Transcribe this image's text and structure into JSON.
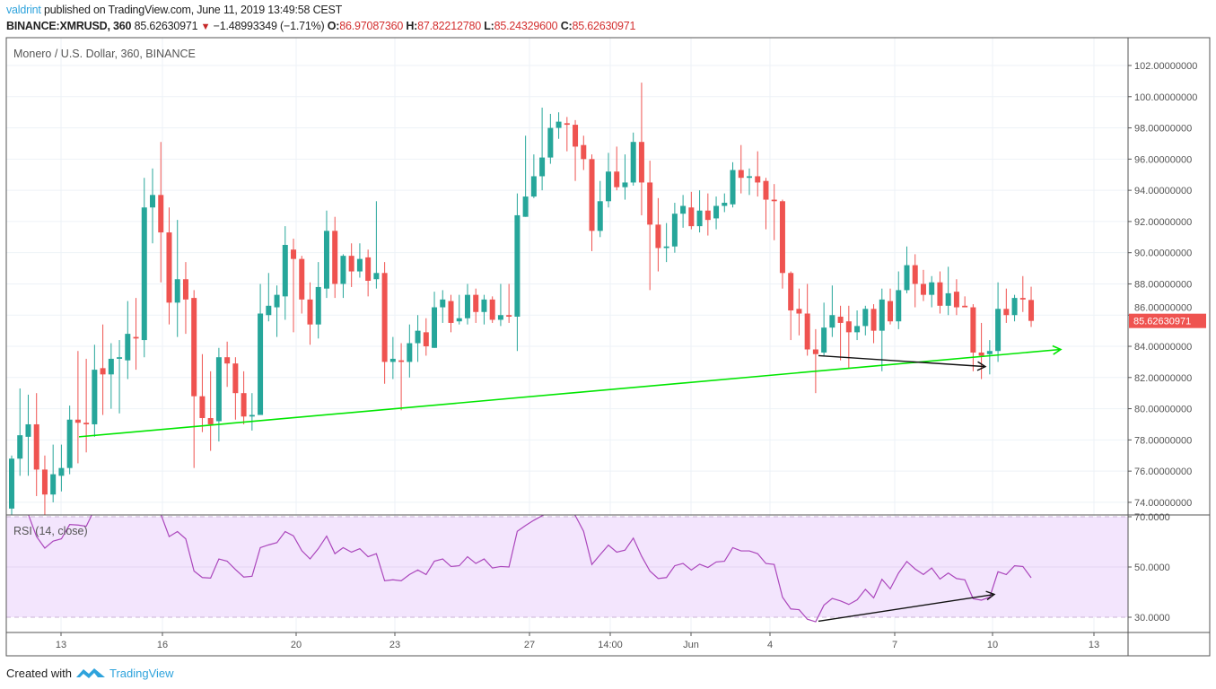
{
  "header": {
    "author": "valdrint",
    "published_text": "published on TradingView.com, June 11, 2019 13:49:58 CEST",
    "symbol": "BINANCE:XMRUSD, 360",
    "last_price": "85.62630971",
    "change": "−1.48993349 (−1.71%)",
    "change_direction": "down",
    "open_label": "O:",
    "open": "86.97087360",
    "high_label": "H:",
    "high": "87.82212780",
    "low_label": "L:",
    "low": "85.24329600",
    "close_label": "C:",
    "close": "85.62630971"
  },
  "legend": "Monero / U.S. Dollar, 360, BINANCE",
  "rsi_legend": "RSI (14, close)",
  "current_price_badge": "85.62630971",
  "footer": {
    "created_with": "Created with",
    "brand": "TradingView"
  },
  "colors": {
    "up": "#26a69a",
    "down": "#ef5350",
    "rsi_line": "#ab47bc",
    "rsi_band": "#f3e5fd",
    "trendline": "#00e600",
    "arrow": "#111111",
    "badge": "#ef5350",
    "brand": "#2ea3dc"
  },
  "chart_data": [
    {
      "type": "candlestick",
      "title": "Monero / U.S. Dollar, 360, BINANCE",
      "ylim": [
        73,
        103
      ],
      "y_ticks": [
        "102.00000000",
        "100.00000000",
        "98.00000000",
        "96.00000000",
        "94.00000000",
        "92.00000000",
        "90.00000000",
        "88.00000000",
        "86.00000000",
        "84.00000000",
        "82.00000000",
        "80.00000000",
        "78.00000000",
        "76.00000000",
        "74.00000000"
      ],
      "x_ticks": [
        "13",
        "16",
        "20",
        "23",
        "27",
        "14:00",
        "Jun",
        "4",
        "7",
        "10",
        "13"
      ],
      "grid": true,
      "ohlc_fields": [
        "open",
        "high",
        "low",
        "close"
      ],
      "candles": [
        [
          73.6,
          77.0,
          73.1,
          76.8
        ],
        [
          76.8,
          81.3,
          75.7,
          78.3
        ],
        [
          78.2,
          80.9,
          75.7,
          79.0
        ],
        [
          79.0,
          81.0,
          74.4,
          76.1
        ],
        [
          76.1,
          77.0,
          73.2,
          74.5
        ],
        [
          74.5,
          77.7,
          74.0,
          75.8
        ],
        [
          75.7,
          77.7,
          74.7,
          76.2
        ],
        [
          76.2,
          80.2,
          75.8,
          79.3
        ],
        [
          79.3,
          83.7,
          76.5,
          79.1
        ],
        [
          79.1,
          83.2,
          77.2,
          79.0
        ],
        [
          79.0,
          84.1,
          78.2,
          82.5
        ],
        [
          82.6,
          85.4,
          79.6,
          82.2
        ],
        [
          82.2,
          84.2,
          80.0,
          83.2
        ],
        [
          83.2,
          84.4,
          79.7,
          83.3
        ],
        [
          83.1,
          86.9,
          81.9,
          84.8
        ],
        [
          84.6,
          87.1,
          82.5,
          84.5
        ],
        [
          84.4,
          94.8,
          83.3,
          92.9
        ],
        [
          92.9,
          95.4,
          90.6,
          93.7
        ],
        [
          93.7,
          97.1,
          88.1,
          91.3
        ],
        [
          91.3,
          92.9,
          85.4,
          86.8
        ],
        [
          86.8,
          92.1,
          84.6,
          88.3
        ],
        [
          88.3,
          89.4,
          84.8,
          87.0
        ],
        [
          87.1,
          87.6,
          76.2,
          80.8
        ],
        [
          80.8,
          83.5,
          78.5,
          79.4
        ],
        [
          79.4,
          82.4,
          77.3,
          79.0
        ],
        [
          79.2,
          83.9,
          77.9,
          83.3
        ],
        [
          83.3,
          84.3,
          81.4,
          82.9
        ],
        [
          82.9,
          83.3,
          79.3,
          81.0
        ],
        [
          81.0,
          82.4,
          79.0,
          79.5
        ],
        [
          79.5,
          81.0,
          78.6,
          79.6
        ],
        [
          79.6,
          88.0,
          79.6,
          86.1
        ],
        [
          86.0,
          88.7,
          85.6,
          86.6
        ],
        [
          86.5,
          87.9,
          84.6,
          87.3
        ],
        [
          87.2,
          91.7,
          85.7,
          90.5
        ],
        [
          90.2,
          90.9,
          84.9,
          89.6
        ],
        [
          89.6,
          89.8,
          86.1,
          87.0
        ],
        [
          87.0,
          88.1,
          84.1,
          85.4
        ],
        [
          85.4,
          89.4,
          84.5,
          87.8
        ],
        [
          87.7,
          92.7,
          87.1,
          91.4
        ],
        [
          91.4,
          92.3,
          87.1,
          88.0
        ],
        [
          88.0,
          89.9,
          87.1,
          89.8
        ],
        [
          89.8,
          90.6,
          87.8,
          88.8
        ],
        [
          88.8,
          90.6,
          88.4,
          89.6
        ],
        [
          89.7,
          90.2,
          87.2,
          88.2
        ],
        [
          88.3,
          93.3,
          87.7,
          88.7
        ],
        [
          88.7,
          89.4,
          81.6,
          83.0
        ],
        [
          83.0,
          84.6,
          81.9,
          83.2
        ],
        [
          83.1,
          84.2,
          79.9,
          83.0
        ],
        [
          83.0,
          85.4,
          82.0,
          84.2
        ],
        [
          84.2,
          86.0,
          83.0,
          85.0
        ],
        [
          84.9,
          85.8,
          83.4,
          84.0
        ],
        [
          83.9,
          87.5,
          83.9,
          86.5
        ],
        [
          86.5,
          87.6,
          85.5,
          87.0
        ],
        [
          86.9,
          87.3,
          84.9,
          85.5
        ],
        [
          85.6,
          87.3,
          85.4,
          85.8
        ],
        [
          85.8,
          88.0,
          85.4,
          87.3
        ],
        [
          87.3,
          87.7,
          85.5,
          86.2
        ],
        [
          86.2,
          87.3,
          85.4,
          87.0
        ],
        [
          87.0,
          87.2,
          85.5,
          85.7
        ],
        [
          85.7,
          88.0,
          85.3,
          86.0
        ],
        [
          86.0,
          88.0,
          85.5,
          85.9
        ],
        [
          85.9,
          93.8,
          83.7,
          92.4
        ],
        [
          92.3,
          97.5,
          92.3,
          93.6
        ],
        [
          93.6,
          96.3,
          93.5,
          94.9
        ],
        [
          94.9,
          99.3,
          94.0,
          96.1
        ],
        [
          96.1,
          98.9,
          95.7,
          98.0
        ],
        [
          98.0,
          99.0,
          97.3,
          98.4
        ],
        [
          98.3,
          98.7,
          96.5,
          98.2
        ],
        [
          98.2,
          98.5,
          94.6,
          96.8
        ],
        [
          96.9,
          97.5,
          95.3,
          96.0
        ],
        [
          96.0,
          96.3,
          90.1,
          91.4
        ],
        [
          91.4,
          94.6,
          91.0,
          93.3
        ],
        [
          93.3,
          96.4,
          92.9,
          95.2
        ],
        [
          95.2,
          96.8,
          94.0,
          94.2
        ],
        [
          94.2,
          96.3,
          93.4,
          94.5
        ],
        [
          94.5,
          97.7,
          94.3,
          97.1
        ],
        [
          97.1,
          100.9,
          92.4,
          94.5
        ],
        [
          94.5,
          95.9,
          87.6,
          91.8
        ],
        [
          91.8,
          93.5,
          88.8,
          90.3
        ],
        [
          90.3,
          91.9,
          89.4,
          90.4
        ],
        [
          90.4,
          93.2,
          90.0,
          92.5
        ],
        [
          92.5,
          93.7,
          91.6,
          93.0
        ],
        [
          92.9,
          93.9,
          91.5,
          91.7
        ],
        [
          91.7,
          94.0,
          91.3,
          92.7
        ],
        [
          92.7,
          93.8,
          91.1,
          92.1
        ],
        [
          92.2,
          93.6,
          91.5,
          93.0
        ],
        [
          93.0,
          93.8,
          92.6,
          93.2
        ],
        [
          93.1,
          95.8,
          92.9,
          95.3
        ],
        [
          95.3,
          96.9,
          93.8,
          94.8
        ],
        [
          94.8,
          95.4,
          93.7,
          94.9
        ],
        [
          94.9,
          96.5,
          93.6,
          94.5
        ],
        [
          94.6,
          94.8,
          91.5,
          93.4
        ],
        [
          93.4,
          94.4,
          90.8,
          93.3
        ],
        [
          93.3,
          93.4,
          87.7,
          88.7
        ],
        [
          88.7,
          88.8,
          84.4,
          86.3
        ],
        [
          86.4,
          87.7,
          84.7,
          86.1
        ],
        [
          86.1,
          88.0,
          83.4,
          83.8
        ],
        [
          83.8,
          85.1,
          81.0,
          83.5
        ],
        [
          83.6,
          86.8,
          83.4,
          85.2
        ],
        [
          85.2,
          87.9,
          84.6,
          86.0
        ],
        [
          85.9,
          86.6,
          83.1,
          85.5
        ],
        [
          85.6,
          86.6,
          82.6,
          84.9
        ],
        [
          84.9,
          86.3,
          84.4,
          85.3
        ],
        [
          85.3,
          86.6,
          84.7,
          86.4
        ],
        [
          86.4,
          86.7,
          84.2,
          85.0
        ],
        [
          85.0,
          87.7,
          82.4,
          87.0
        ],
        [
          86.9,
          87.7,
          85.4,
          85.6
        ],
        [
          85.6,
          88.8,
          85.1,
          87.6
        ],
        [
          87.6,
          90.4,
          87.4,
          89.2
        ],
        [
          89.2,
          89.9,
          86.5,
          88.0
        ],
        [
          88.0,
          88.9,
          86.9,
          87.3
        ],
        [
          87.3,
          88.5,
          86.5,
          88.1
        ],
        [
          88.1,
          88.8,
          86.1,
          86.6
        ],
        [
          86.6,
          89.1,
          86.0,
          87.4
        ],
        [
          87.5,
          88.3,
          86.0,
          86.5
        ],
        [
          86.6,
          87.2,
          86.5,
          86.5
        ],
        [
          86.5,
          86.7,
          82.4,
          83.6
        ],
        [
          83.6,
          85.5,
          81.9,
          83.4
        ],
        [
          83.5,
          84.4,
          82.2,
          83.7
        ],
        [
          83.7,
          88.1,
          83.0,
          86.4
        ],
        [
          86.4,
          87.7,
          85.5,
          86.0
        ],
        [
          86.0,
          87.3,
          85.6,
          87.1
        ],
        [
          87.1,
          88.5,
          86.2,
          87.0
        ],
        [
          86.97,
          87.82,
          85.24,
          85.63
        ]
      ],
      "trendlines": [
        {
          "color": "#00e600",
          "start_price": 78.2,
          "end_price": 83.8,
          "arrow": true
        },
        {
          "color": "#111111",
          "start_price": 83.4,
          "end_price": 82.7,
          "arrow": true
        }
      ]
    },
    {
      "type": "line",
      "title": "RSI (14, close)",
      "ylim": [
        28,
        70
      ],
      "y_ticks": [
        "70.0000",
        "50.0000",
        "30.0000"
      ],
      "band": [
        30,
        70
      ],
      "values": [
        71,
        73,
        71,
        62.1,
        57.5,
        60.3,
        61.2,
        66.9,
        66.7,
        66.2,
        73,
        71,
        72,
        72,
        74,
        73,
        79,
        80,
        71,
        62.1,
        64.1,
        61.2,
        48.4,
        45.8,
        45.6,
        53.2,
        52.3,
        49.0,
        46.0,
        46.3,
        57.7,
        58.8,
        59.7,
        64.1,
        62.4,
        56.5,
        53.2,
        57.3,
        62.3,
        55.3,
        57.7,
        55.9,
        57.3,
        54.1,
        55.3,
        44.5,
        44.9,
        44.5,
        47.0,
        48.8,
        47.0,
        52.3,
        53.2,
        50.2,
        50.5,
        54.1,
        51.4,
        53.2,
        49.6,
        50.2,
        50.0,
        64.2,
        66.5,
        68.6,
        70.4,
        72,
        74,
        73,
        70.5,
        64.2,
        51.0,
        54.9,
        58.7,
        55.9,
        56.7,
        61.5,
        54.3,
        48.4,
        45.4,
        45.8,
        50.5,
        51.4,
        48.8,
        51.1,
        49.8,
        52.0,
        52.3,
        57.7,
        56.4,
        56.4,
        55.3,
        51.4,
        51.0,
        38.0,
        33.3,
        33.0,
        29.2,
        28.2,
        34.8,
        37.5,
        36.5,
        35.1,
        36.9,
        41.1,
        37.7,
        45.1,
        41.3,
        47.6,
        52.2,
        49.2,
        47.0,
        49.6,
        45.2,
        47.6,
        45.4,
        44.9,
        37.4,
        36.8,
        38.0,
        48.1,
        47.0,
        50.5,
        50.2,
        45.7
      ],
      "trendlines": [
        {
          "color": "#111111",
          "start_value": 28.4,
          "end_value": 39.1,
          "arrow": true
        }
      ]
    }
  ]
}
